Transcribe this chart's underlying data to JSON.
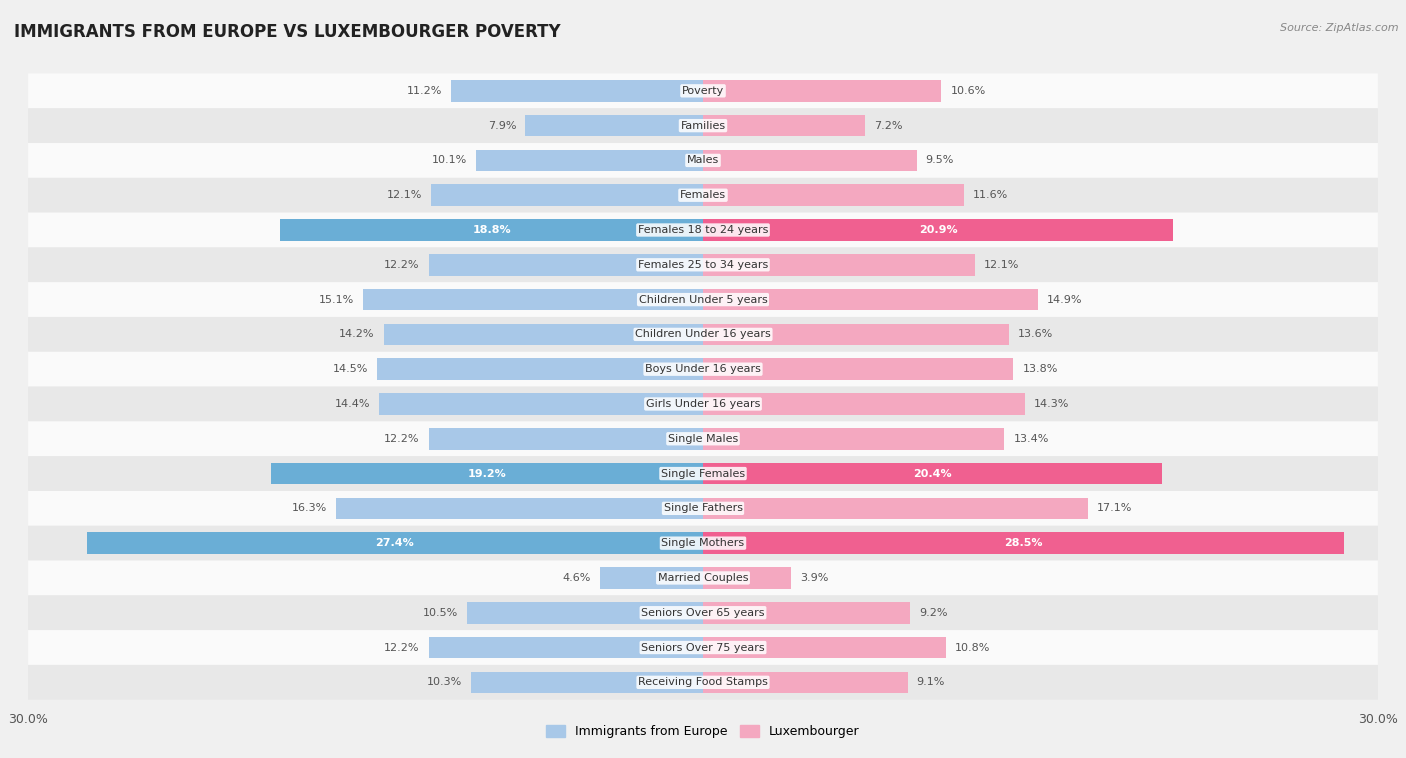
{
  "title": "IMMIGRANTS FROM EUROPE VS LUXEMBOURGER POVERTY",
  "source": "Source: ZipAtlas.com",
  "categories": [
    "Poverty",
    "Families",
    "Males",
    "Females",
    "Females 18 to 24 years",
    "Females 25 to 34 years",
    "Children Under 5 years",
    "Children Under 16 years",
    "Boys Under 16 years",
    "Girls Under 16 years",
    "Single Males",
    "Single Females",
    "Single Fathers",
    "Single Mothers",
    "Married Couples",
    "Seniors Over 65 years",
    "Seniors Over 75 years",
    "Receiving Food Stamps"
  ],
  "left_values": [
    11.2,
    7.9,
    10.1,
    12.1,
    18.8,
    12.2,
    15.1,
    14.2,
    14.5,
    14.4,
    12.2,
    19.2,
    16.3,
    27.4,
    4.6,
    10.5,
    12.2,
    10.3
  ],
  "right_values": [
    10.6,
    7.2,
    9.5,
    11.6,
    20.9,
    12.1,
    14.9,
    13.6,
    13.8,
    14.3,
    13.4,
    20.4,
    17.1,
    28.5,
    3.9,
    9.2,
    10.8,
    9.1
  ],
  "left_color_normal": "#a8c8e8",
  "right_color_normal": "#f4a8c0",
  "left_color_highlight": "#6aaed6",
  "right_color_highlight": "#f06090",
  "highlight_rows": [
    4,
    11,
    13
  ],
  "xlim": 30.0,
  "left_label": "Immigrants from Europe",
  "right_label": "Luxembourger",
  "bg_color": "#f0f0f0",
  "row_bg_even": "#fafafa",
  "row_bg_odd": "#e8e8e8",
  "label_color_normal": "#555555",
  "label_color_highlight": "#ffffff",
  "cat_label_fontsize": 8,
  "val_label_fontsize": 8
}
